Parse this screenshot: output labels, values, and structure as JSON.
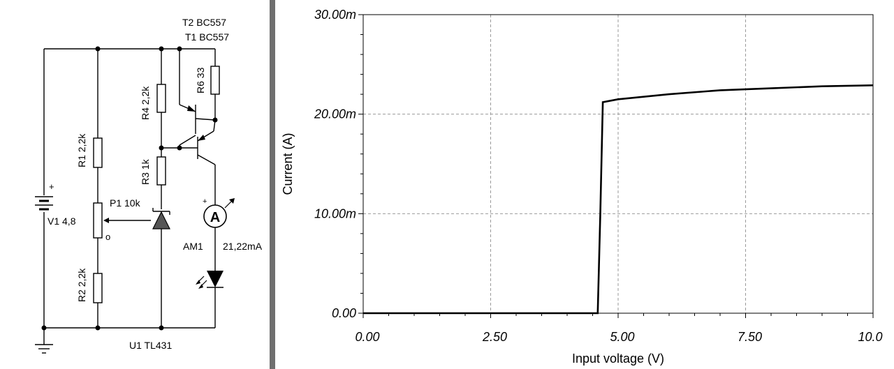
{
  "schematic": {
    "transistor_labels": [
      "T2 BC557",
      "T1 BC557"
    ],
    "resistors": {
      "r4": "R4 2,2k",
      "r6": "R6 33",
      "r1": "R1 2,2k",
      "r3": "R3 1k",
      "r2": "R2 2,2k"
    },
    "potentiometer": "P1 10k",
    "source": "V1 4,8",
    "ammeter_symbol": "A",
    "ammeter_name": "AM1",
    "ammeter_reading": "21,22mA",
    "regulator": "U1 TL431",
    "plus_sign": "+",
    "pot_terminal_mark": "o"
  },
  "chart_data": {
    "type": "line",
    "xlabel": "Input voltage (V)",
    "ylabel": "Current (A)",
    "xlim": [
      0,
      10
    ],
    "ylim": [
      0,
      0.03
    ],
    "x_ticks": [
      0,
      2.5,
      5,
      7.5,
      10
    ],
    "x_tick_labels": [
      "0.00",
      "2.50",
      "5.00",
      "7.50",
      "10.0"
    ],
    "y_ticks": [
      0,
      0.01,
      0.02,
      0.03
    ],
    "y_tick_labels": [
      "0.00",
      "10.00m",
      "20.00m",
      "30.00m"
    ],
    "grid": true,
    "series": [
      {
        "x": [
          0,
          4.6,
          4.65,
          4.7,
          5.0,
          6.0,
          7.0,
          8.0,
          9.0,
          10.0
        ],
        "y": [
          0,
          0,
          0.01,
          0.0212,
          0.0215,
          0.022,
          0.0224,
          0.0226,
          0.0228,
          0.0229
        ]
      }
    ]
  }
}
